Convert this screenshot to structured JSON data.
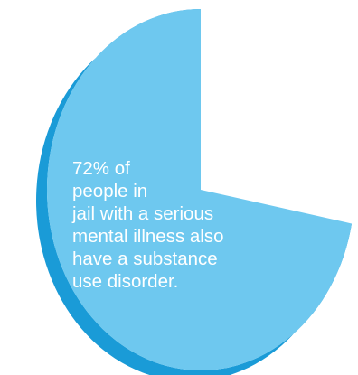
{
  "colors": {
    "slice_top": "#6ec8ef",
    "slice_side": "#1a9bd7",
    "text": "#ffffff"
  },
  "chart_data": {
    "type": "pie",
    "style": "3d-tilted",
    "slices": [
      {
        "value": 72,
        "color": "#6ec8ef",
        "shown": true
      },
      {
        "value": 28,
        "color": "none",
        "shown": false
      }
    ],
    "annotation_lines": [
      "72% of",
      "people in",
      "jail with a serious",
      "mental illness also",
      "have a substance",
      "use disorder."
    ]
  }
}
